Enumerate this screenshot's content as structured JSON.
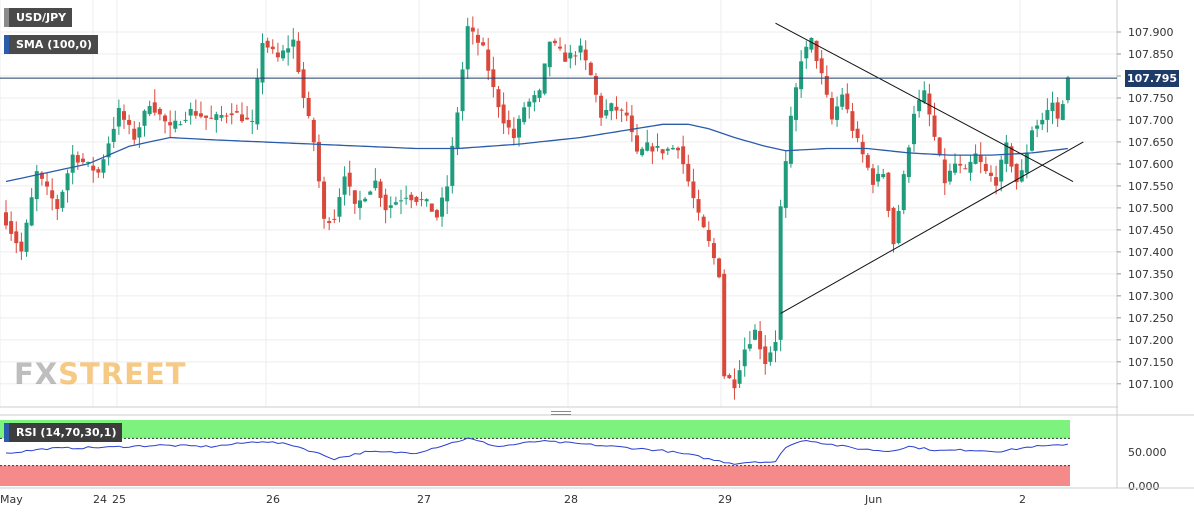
{
  "legend": {
    "symbol": "USD/JPY",
    "sma_label": "SMA (100,0)",
    "rsi_label": "RSI (14,70,30,1)",
    "sma_color": "#2a5caa",
    "symbol_color": "#5a5a5a",
    "rsi_color": "#2a5caa"
  },
  "price_badge": "107.795",
  "logo": {
    "part1": "FX",
    "part2": "STREET"
  },
  "colors": {
    "up": "#1f9c7c",
    "down": "#d9483b",
    "sma": "#2a5caa",
    "rsi_line": "#2a3fd0",
    "rsi_overbought": "#7ef27e",
    "rsi_oversold": "#f58a8a",
    "current_price_line": "#1f3b68"
  },
  "chart_data": [
    {
      "type": "candlestick",
      "title": "USD/JPY",
      "ylim": [
        107.07,
        107.95
      ],
      "y_ticks": [
        "107.900",
        "107.850",
        "107.800",
        "107.750",
        "107.700",
        "107.650",
        "107.600",
        "107.550",
        "107.500",
        "107.450",
        "107.400",
        "107.350",
        "107.300",
        "107.250",
        "107.200",
        "107.150",
        "107.100"
      ],
      "y_tick_values": [
        107.9,
        107.85,
        107.8,
        107.75,
        107.7,
        107.65,
        107.6,
        107.55,
        107.5,
        107.45,
        107.4,
        107.35,
        107.3,
        107.25,
        107.2,
        107.15,
        107.1
      ],
      "x_tick_labels": [
        "May",
        "24",
        "25",
        "26",
        "27",
        "28",
        "29",
        "Jun",
        "2"
      ],
      "current_price": 107.795,
      "anchors": [
        [
          0,
          107.47
        ],
        [
          3,
          107.4
        ],
        [
          6,
          107.58
        ],
        [
          10,
          107.5
        ],
        [
          13,
          107.62
        ],
        [
          18,
          107.58
        ],
        [
          22,
          107.72
        ],
        [
          25,
          107.66
        ],
        [
          28,
          107.74
        ],
        [
          32,
          107.68
        ],
        [
          36,
          107.72
        ],
        [
          40,
          107.7
        ],
        [
          44,
          107.72
        ],
        [
          48,
          107.69
        ],
        [
          50,
          107.88
        ],
        [
          53,
          107.84
        ],
        [
          56,
          107.88
        ],
        [
          58,
          107.75
        ],
        [
          60,
          107.65
        ],
        [
          62,
          107.47
        ],
        [
          64,
          107.48
        ],
        [
          66,
          107.58
        ],
        [
          68,
          107.5
        ],
        [
          72,
          107.56
        ],
        [
          74,
          107.5
        ],
        [
          78,
          107.53
        ],
        [
          82,
          107.51
        ],
        [
          84,
          107.48
        ],
        [
          86,
          107.55
        ],
        [
          88,
          107.72
        ],
        [
          90,
          107.91
        ],
        [
          93,
          107.86
        ],
        [
          95,
          107.77
        ],
        [
          97,
          107.7
        ],
        [
          99,
          107.66
        ],
        [
          101,
          107.73
        ],
        [
          104,
          107.76
        ],
        [
          106,
          107.88
        ],
        [
          109,
          107.84
        ],
        [
          112,
          107.86
        ],
        [
          114,
          107.8
        ],
        [
          116,
          107.71
        ],
        [
          118,
          107.73
        ],
        [
          121,
          107.71
        ],
        [
          123,
          107.62
        ],
        [
          125,
          107.64
        ],
        [
          128,
          107.63
        ],
        [
          131,
          107.64
        ],
        [
          133,
          107.56
        ],
        [
          135,
          107.48
        ],
        [
          137,
          107.42
        ],
        [
          139,
          107.35
        ],
        [
          140,
          107.12
        ],
        [
          142,
          107.1
        ],
        [
          144,
          107.18
        ],
        [
          146,
          107.22
        ],
        [
          148,
          107.15
        ],
        [
          150,
          107.2
        ],
        [
          151,
          107.5
        ],
        [
          153,
          107.7
        ],
        [
          155,
          107.84
        ],
        [
          157,
          107.88
        ],
        [
          159,
          107.8
        ],
        [
          161,
          107.7
        ],
        [
          163,
          107.76
        ],
        [
          165,
          107.68
        ],
        [
          167,
          107.62
        ],
        [
          169,
          107.56
        ],
        [
          171,
          107.58
        ],
        [
          173,
          107.42
        ],
        [
          175,
          107.57
        ],
        [
          177,
          107.72
        ],
        [
          179,
          107.76
        ],
        [
          181,
          107.66
        ],
        [
          183,
          107.56
        ],
        [
          185,
          107.6
        ],
        [
          187,
          107.58
        ],
        [
          189,
          107.62
        ],
        [
          191,
          107.58
        ],
        [
          193,
          107.56
        ],
        [
          195,
          107.64
        ],
        [
          197,
          107.56
        ],
        [
          198,
          107.58
        ],
        [
          200,
          107.68
        ],
        [
          202,
          107.7
        ],
        [
          204,
          107.74
        ],
        [
          205,
          107.7
        ],
        [
          207,
          107.79
        ]
      ]
    },
    {
      "type": "line",
      "name": "SMA (100,0)",
      "anchors": [
        [
          0,
          107.56
        ],
        [
          16,
          107.6
        ],
        [
          24,
          107.64
        ],
        [
          32,
          107.66
        ],
        [
          40,
          107.655
        ],
        [
          50,
          107.65
        ],
        [
          60,
          107.645
        ],
        [
          70,
          107.64
        ],
        [
          80,
          107.635
        ],
        [
          88,
          107.635
        ],
        [
          100,
          107.645
        ],
        [
          112,
          107.66
        ],
        [
          120,
          107.675
        ],
        [
          128,
          107.69
        ],
        [
          133,
          107.69
        ],
        [
          137,
          107.68
        ],
        [
          142,
          107.66
        ],
        [
          148,
          107.64
        ],
        [
          152,
          107.63
        ],
        [
          160,
          107.635
        ],
        [
          168,
          107.635
        ],
        [
          176,
          107.625
        ],
        [
          184,
          107.62
        ],
        [
          192,
          107.62
        ],
        [
          200,
          107.625
        ],
        [
          207,
          107.635
        ]
      ]
    },
    {
      "type": "line",
      "name": "RSI (14,70,30,1)",
      "ylim": [
        0,
        100
      ],
      "overbought": 70,
      "oversold": 30,
      "y_ticks": [
        "50.000",
        "0.000"
      ],
      "y_tick_values": [
        50,
        0
      ],
      "anchors": [
        [
          0,
          48
        ],
        [
          8,
          55
        ],
        [
          20,
          57
        ],
        [
          30,
          60
        ],
        [
          40,
          58
        ],
        [
          50,
          66
        ],
        [
          56,
          60
        ],
        [
          62,
          45
        ],
        [
          64,
          40
        ],
        [
          70,
          50
        ],
        [
          80,
          49
        ],
        [
          90,
          70
        ],
        [
          96,
          58
        ],
        [
          104,
          66
        ],
        [
          112,
          62
        ],
        [
          120,
          57
        ],
        [
          128,
          52
        ],
        [
          134,
          45
        ],
        [
          138,
          38
        ],
        [
          142,
          33
        ],
        [
          146,
          36
        ],
        [
          150,
          35
        ],
        [
          152,
          58
        ],
        [
          156,
          68
        ],
        [
          160,
          62
        ],
        [
          166,
          55
        ],
        [
          172,
          51
        ],
        [
          176,
          58
        ],
        [
          182,
          52
        ],
        [
          188,
          53
        ],
        [
          194,
          51
        ],
        [
          200,
          58
        ],
        [
          204,
          59
        ],
        [
          207,
          62
        ]
      ]
    },
    {
      "type": "trendline",
      "name": "upper",
      "points": [
        [
          150,
          107.92
        ],
        [
          208,
          107.56
        ]
      ]
    },
    {
      "type": "trendline",
      "name": "lower",
      "points": [
        [
          151,
          107.26
        ],
        [
          210,
          107.65
        ]
      ]
    }
  ]
}
